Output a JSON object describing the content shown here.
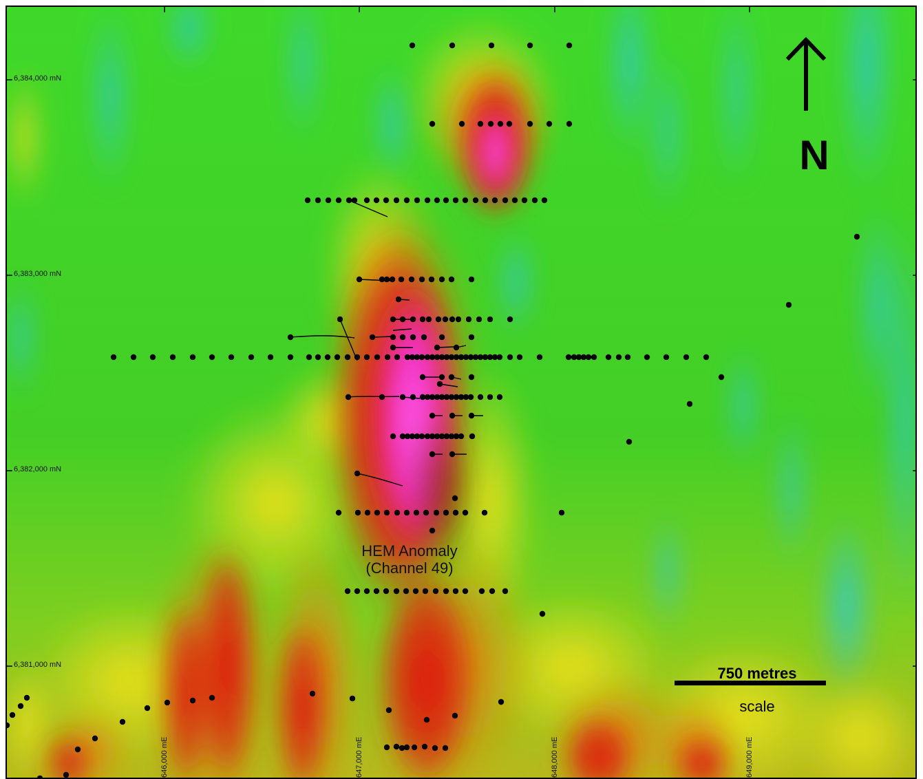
{
  "map": {
    "northing_labels": [
      "6,384,000 mN",
      "6,383,000 mN",
      "6,382,000 mN",
      "6,381,000 mN"
    ],
    "easting_labels": [
      "646,000 mE",
      "647,000 mE",
      "648,000 mE",
      "649,000 mE"
    ],
    "north_arrow_label": "N",
    "scale_bar": {
      "distance": "750 metres",
      "caption": "scale"
    },
    "anomaly": {
      "line1": "HEM Anomaly",
      "line2": "(Channel 49)"
    },
    "colors": {
      "background_green": "#3fcf28",
      "low_cyan": "#2fc7c2",
      "mid_yellow": "#e6e21a",
      "high_red": "#e01010",
      "peak_magenta": "#ff2fd8",
      "drill_points": "#000000"
    }
  }
}
